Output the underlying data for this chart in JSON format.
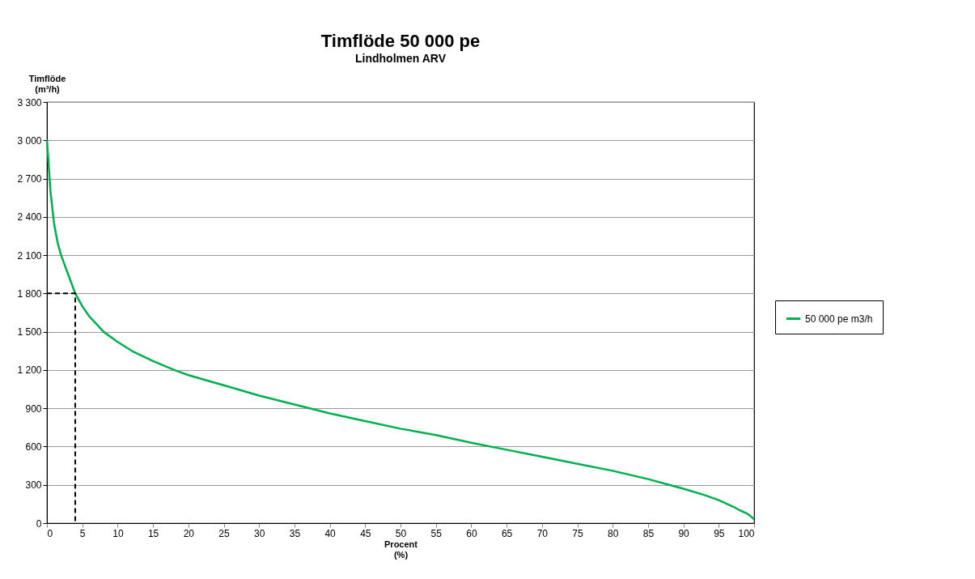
{
  "chart_data": {
    "type": "line",
    "title": "Timflöde 50 000 pe",
    "subtitle": "Lindholmen ARV",
    "xlabel": "Procent (%)",
    "ylabel": "Timflöde (m³/h)",
    "xlim": [
      0,
      100
    ],
    "xticks": [
      0,
      5,
      10,
      15,
      20,
      25,
      30,
      35,
      40,
      45,
      50,
      55,
      60,
      65,
      70,
      75,
      80,
      85,
      90,
      95,
      100
    ],
    "ylim": [
      0,
      3300
    ],
    "yticks": [
      0,
      300,
      600,
      900,
      {
        "value": 1200,
        "label": "1 200"
      },
      {
        "value": 1500,
        "label": "1 500"
      },
      {
        "value": 1800,
        "label": "1 800"
      },
      {
        "value": 2100,
        "label": "2 100"
      },
      {
        "value": 2400,
        "label": "2 400"
      },
      {
        "value": 2700,
        "label": "2 700"
      },
      {
        "value": 3000,
        "label": "3 000"
      },
      {
        "value": 3300,
        "label": "3 300"
      }
    ],
    "grid": "y",
    "legend": "right",
    "marker": "none",
    "series": [
      {
        "name": "50 000 pe m3/h",
        "color": "#00b050",
        "line_style": "solid",
        "x": [
          0,
          0.2,
          0.5,
          1,
          1.5,
          2,
          3,
          4,
          5,
          6,
          7,
          8,
          10,
          12,
          15,
          18,
          20,
          25,
          30,
          35,
          40,
          45,
          50,
          55,
          60,
          65,
          70,
          75,
          80,
          85,
          88,
          90,
          93,
          95,
          97,
          98,
          99,
          99.5,
          100
        ],
        "values": [
          3000,
          2850,
          2600,
          2350,
          2200,
          2100,
          1950,
          1800,
          1700,
          1620,
          1560,
          1500,
          1420,
          1350,
          1270,
          1200,
          1160,
          1080,
          1000,
          930,
          860,
          800,
          740,
          690,
          630,
          575,
          520,
          465,
          410,
          345,
          300,
          270,
          220,
          180,
          130,
          100,
          75,
          55,
          30
        ]
      },
      {
        "color": "#000000",
        "line_style": "dashed",
        "x": [
          0,
          4,
          4
        ],
        "values": [
          1800,
          1800,
          0
        ]
      }
    ]
  }
}
